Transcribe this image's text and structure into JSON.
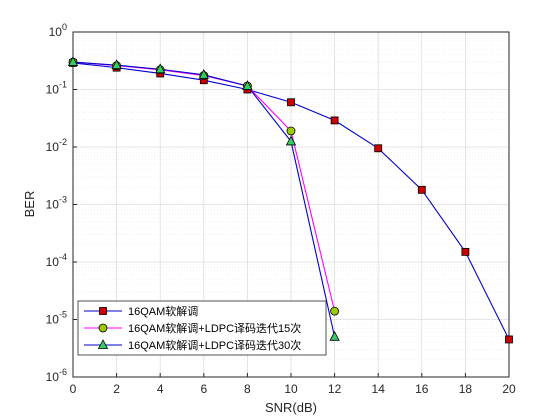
{
  "chart_data": {
    "type": "line",
    "title": "",
    "xlabel": "SNR(dB)",
    "ylabel": "BER",
    "xlim": [
      0,
      20
    ],
    "ylim": [
      1e-06,
      1
    ],
    "yscale": "log",
    "xticks": [
      0,
      2,
      4,
      6,
      8,
      10,
      12,
      14,
      16,
      18,
      20
    ],
    "xtick_labels": [
      "0",
      "2",
      "4",
      "6",
      "8",
      "10",
      "12",
      "14",
      "16",
      "18",
      "20"
    ],
    "yticks": [
      1,
      0.1,
      0.01,
      0.001,
      0.0001,
      1e-05,
      1e-06
    ],
    "ytick_labels": [
      {
        "base": "10",
        "exp": "0"
      },
      {
        "base": "10",
        "exp": "-1"
      },
      {
        "base": "10",
        "exp": "-2"
      },
      {
        "base": "10",
        "exp": "-3"
      },
      {
        "base": "10",
        "exp": "-4"
      },
      {
        "base": "10",
        "exp": "-5"
      },
      {
        "base": "10",
        "exp": "-6"
      }
    ],
    "grid": true,
    "minor_grid": true,
    "legend_position": "bottom-left",
    "series": [
      {
        "name": "16QAM软解调",
        "color": "#0000cc",
        "marker": "square",
        "marker_color": "#cc0000",
        "x": [
          0,
          2,
          4,
          6,
          8,
          10,
          12,
          14,
          16,
          18,
          20
        ],
        "y": [
          0.29,
          0.24,
          0.19,
          0.145,
          0.1,
          0.06,
          0.029,
          0.0095,
          0.0018,
          0.00015,
          4.5e-06
        ]
      },
      {
        "name": "16QAM软解调+LDPC译码迭代15次",
        "color": "#ff00ff",
        "marker": "circle",
        "marker_color": "#99cc00",
        "x": [
          0,
          2,
          4,
          6,
          8,
          10,
          12
        ],
        "y": [
          0.3,
          0.26,
          0.22,
          0.175,
          0.115,
          0.019,
          1.4e-05
        ]
      },
      {
        "name": "16QAM软解调+LDPC译码迭代30次",
        "color": "#0000cc",
        "marker": "triangle",
        "marker_color": "#33cc66",
        "x": [
          0,
          2,
          4,
          6,
          8,
          10,
          12
        ],
        "y": [
          0.3,
          0.265,
          0.225,
          0.18,
          0.115,
          0.0125,
          5e-06
        ]
      }
    ]
  }
}
